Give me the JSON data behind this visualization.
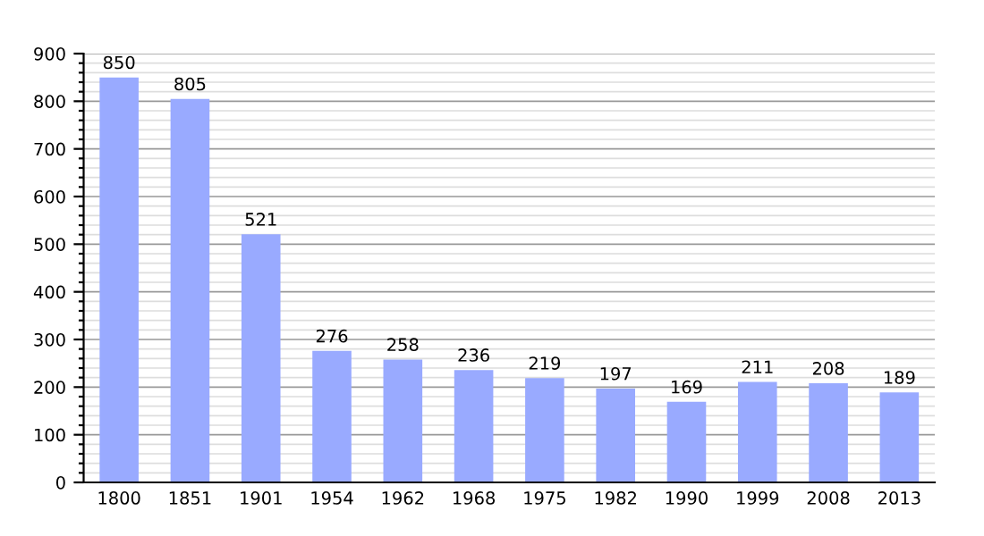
{
  "chart_data": {
    "type": "bar",
    "categories": [
      "1800",
      "1851",
      "1901",
      "1954",
      "1962",
      "1968",
      "1975",
      "1982",
      "1990",
      "1999",
      "2008",
      "2013"
    ],
    "values": [
      850,
      805,
      521,
      276,
      258,
      236,
      219,
      197,
      169,
      211,
      208,
      189
    ],
    "color": "#99aaff",
    "data_labels": true,
    "grid": "y",
    "ylim": [
      0,
      900
    ],
    "yticks": [
      0,
      {
        "value": 20,
        "label": null
      },
      {
        "value": 40,
        "label": null
      },
      {
        "value": 60,
        "label": null
      },
      {
        "value": 80,
        "label": null
      },
      100,
      {
        "value": 120,
        "label": null
      },
      {
        "value": 140,
        "label": null
      },
      {
        "value": 160,
        "label": null
      },
      {
        "value": 180,
        "label": null
      },
      200,
      {
        "value": 220,
        "label": null
      },
      {
        "value": 240,
        "label": null
      },
      {
        "value": 260,
        "label": null
      },
      {
        "value": 280,
        "label": null
      },
      300,
      {
        "value": 320,
        "label": null
      },
      {
        "value": 340,
        "label": null
      },
      {
        "value": 360,
        "label": null
      },
      {
        "value": 380,
        "label": null
      },
      400,
      {
        "value": 420,
        "label": null
      },
      {
        "value": 440,
        "label": null
      },
      {
        "value": 460,
        "label": null
      },
      {
        "value": 480,
        "label": null
      },
      500,
      {
        "value": 520,
        "label": null
      },
      {
        "value": 540,
        "label": null
      },
      {
        "value": 560,
        "label": null
      },
      {
        "value": 580,
        "label": null
      },
      600,
      {
        "value": 620,
        "label": null
      },
      {
        "value": 640,
        "label": null
      },
      {
        "value": 660,
        "label": null
      },
      {
        "value": 680,
        "label": null
      },
      700,
      {
        "value": 720,
        "label": null
      },
      {
        "value": 740,
        "label": null
      },
      {
        "value": 760,
        "label": null
      },
      {
        "value": 780,
        "label": null
      },
      800,
      {
        "value": 820,
        "label": null
      },
      {
        "value": 840,
        "label": null
      },
      {
        "value": 860,
        "label": null
      },
      {
        "value": 880,
        "label": null
      },
      900
    ]
  }
}
